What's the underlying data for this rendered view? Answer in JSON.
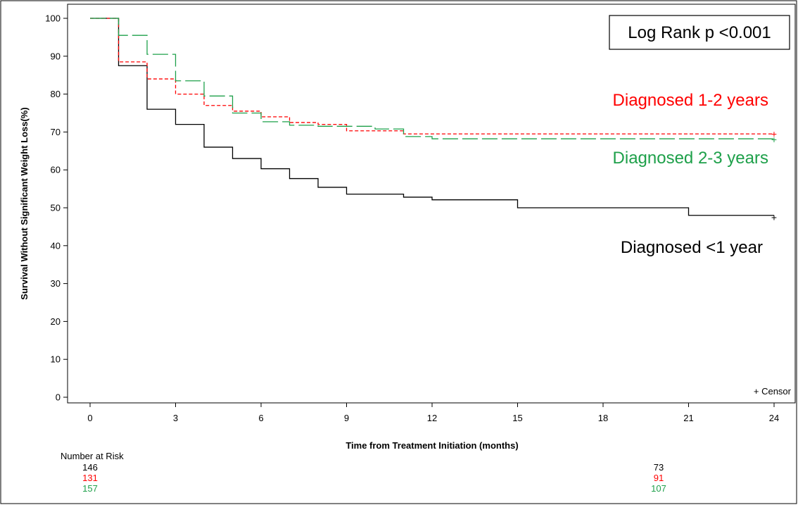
{
  "chart_data": {
    "type": "line",
    "subtype": "kaplan-meier step",
    "xlabel": "Time from Treatment Initiation (months)",
    "ylabel": "Survival Without Significant Weight Loss(%)",
    "xlim": [
      0,
      24
    ],
    "ylim": [
      0,
      100
    ],
    "x_ticks": [
      0,
      3,
      6,
      9,
      12,
      15,
      18,
      21,
      24
    ],
    "y_ticks": [
      0,
      10,
      20,
      30,
      40,
      50,
      60,
      70,
      80,
      90,
      100
    ],
    "grid": false,
    "series": [
      {
        "name": "Diagnosed <1 year",
        "color": "#000000",
        "dash": "solid",
        "steps": [
          [
            0,
            100
          ],
          [
            1,
            87.5
          ],
          [
            2,
            76
          ],
          [
            3,
            72
          ],
          [
            4,
            66
          ],
          [
            5,
            63
          ],
          [
            6,
            60.3
          ],
          [
            7,
            57.7
          ],
          [
            8,
            55.4
          ],
          [
            9,
            53.6
          ],
          [
            11,
            52.8
          ],
          [
            12,
            52.1
          ],
          [
            15,
            50
          ],
          [
            21,
            48
          ],
          [
            24,
            48
          ]
        ],
        "censor": [
          [
            24,
            47.5
          ]
        ]
      },
      {
        "name": "Diagnosed 1-2 years",
        "color": "#ff0000",
        "dash": "short",
        "steps": [
          [
            0,
            100
          ],
          [
            1,
            88.5
          ],
          [
            2,
            84
          ],
          [
            3,
            80
          ],
          [
            4,
            77
          ],
          [
            5,
            75.5
          ],
          [
            6,
            74
          ],
          [
            7,
            72.5
          ],
          [
            8,
            72
          ],
          [
            9,
            70.3
          ],
          [
            11,
            69.5
          ],
          [
            24,
            69.5
          ]
        ],
        "censor": [
          [
            24,
            69.5
          ]
        ]
      },
      {
        "name": "Diagnosed 2-3 years",
        "color": "#1ea04a",
        "dash": "long",
        "steps": [
          [
            0,
            100
          ],
          [
            1,
            95.5
          ],
          [
            2,
            90.5
          ],
          [
            3,
            83.5
          ],
          [
            4,
            79.5
          ],
          [
            5,
            75
          ],
          [
            6,
            72.7
          ],
          [
            7,
            71.8
          ],
          [
            8,
            71.5
          ],
          [
            9,
            71.5
          ],
          [
            10,
            70.8
          ],
          [
            11,
            68.8
          ],
          [
            12,
            68.2
          ],
          [
            24,
            68.2
          ]
        ],
        "censor": [
          [
            24,
            68
          ]
        ]
      }
    ],
    "annotations": {
      "log_rank": "Log Rank p <0.001",
      "censor_legend": "+ Censor",
      "labels": [
        {
          "text": "Diagnosed 1-2 years",
          "color": "#ff0000"
        },
        {
          "text": "Diagnosed 2-3 years",
          "color": "#1ea04a"
        },
        {
          "text": "Diagnosed <1 year",
          "color": "#000000"
        }
      ]
    },
    "number_at_risk": {
      "title": "Number at Risk",
      "rows": [
        {
          "color": "#000000",
          "values": [
            "146",
            "73"
          ]
        },
        {
          "color": "#ff0000",
          "values": [
            "131",
            "91"
          ]
        },
        {
          "color": "#1ea04a",
          "values": [
            "157",
            "107"
          ]
        }
      ]
    }
  }
}
